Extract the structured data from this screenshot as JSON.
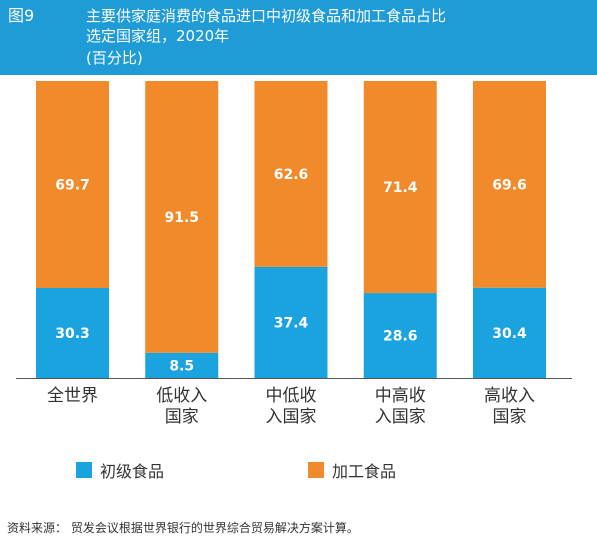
{
  "figure_label": "图9",
  "title_lines": [
    "主要供家庭消费的食品进口中初级食品和加工食品占比",
    "选定国家组，2020年",
    "(百分比)"
  ],
  "colors": {
    "header_bg": "#1f9bd5",
    "primary": "#1ba3e0",
    "processed": "#f08a2a"
  },
  "chart_data": {
    "type": "bar",
    "stacked": true,
    "categories": [
      [
        "全世界"
      ],
      [
        "低收入",
        "国家"
      ],
      [
        "中低收",
        "入国家"
      ],
      [
        "中高收",
        "入国家"
      ],
      [
        "高收入",
        "国家"
      ]
    ],
    "series": [
      {
        "name": "初级食品",
        "values": [
          30.3,
          8.5,
          37.4,
          28.6,
          30.4
        ]
      },
      {
        "name": "加工食品",
        "values": [
          69.7,
          91.5,
          62.6,
          71.4,
          69.6
        ]
      }
    ],
    "ylim": [
      0,
      100
    ],
    "grid": false
  },
  "legend": [
    {
      "label": "初级食品"
    },
    {
      "label": "加工食品"
    }
  ],
  "source": "资料来源： 贸发会议根据世界银行的世界综合贸易解决方案计算。"
}
